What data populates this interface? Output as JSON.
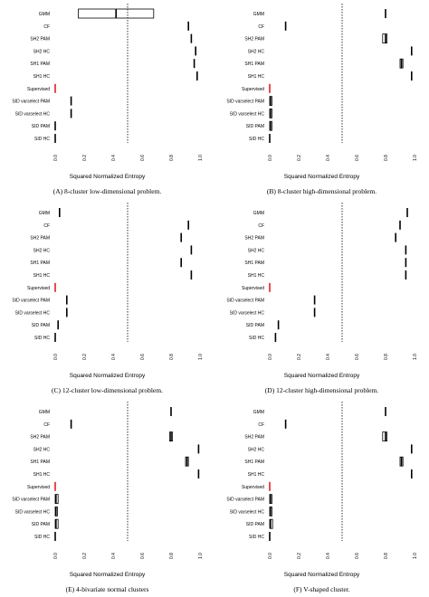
{
  "figure": {
    "colors": {
      "mark": "#000000",
      "supervised": "#e02020",
      "guide": "#000000"
    },
    "chart_data": [
      {
        "type": "box",
        "caption": "(A)  8-cluster low-dimensional problem.",
        "xlabel": "Squared Normalized Entropy",
        "xlim": [
          0,
          1
        ],
        "xticks": [
          "0.0",
          "0.2",
          "0.4",
          "0.6",
          "0.8",
          "1.0"
        ],
        "reference_line": 0.5,
        "categories": [
          "GMM",
          "CF",
          "SH2 PAM",
          "SH2 HC",
          "SH1 PAM",
          "SH1 HC",
          "Supervised",
          "SID varselect PAM",
          "SID varselect HC",
          "SID PAM",
          "SID HC"
        ],
        "boxes": [
          {
            "q1": 0.16,
            "median": 0.42,
            "q3": 0.68
          },
          {
            "median": 0.92
          },
          {
            "median": 0.94
          },
          {
            "median": 0.97
          },
          {
            "median": 0.96
          },
          {
            "median": 0.98
          },
          {
            "median": 0.0
          },
          {
            "median": 0.11
          },
          {
            "median": 0.11
          },
          {
            "median": 0.0
          },
          {
            "median": 0.0
          }
        ]
      },
      {
        "type": "box",
        "caption": "(B)  8-cluster high-dimensional problem.",
        "xlabel": "Squared Normalized Entropy",
        "xlim": [
          0,
          1
        ],
        "xticks": [
          "0.0",
          "0.2",
          "0.4",
          "0.6",
          "0.8",
          "1.0"
        ],
        "reference_line": 0.5,
        "categories": [
          "GMM",
          "CF",
          "SH2 PAM",
          "SH2 HC",
          "SH1 PAM",
          "SH1 HC",
          "Supervised",
          "SID varselect PAM",
          "SID varselect HC",
          "SID PAM",
          "SID HC"
        ],
        "boxes": [
          {
            "median": 0.8
          },
          {
            "median": 0.11
          },
          {
            "q1": 0.78,
            "median": 0.8,
            "q3": 0.81
          },
          {
            "median": 0.98
          },
          {
            "q1": 0.9,
            "median": 0.91,
            "q3": 0.92
          },
          {
            "median": 0.98
          },
          {
            "median": 0.0
          },
          {
            "q1": 0.0,
            "median": 0.005,
            "q3": 0.015
          },
          {
            "q1": 0.0,
            "median": 0.005,
            "q3": 0.015
          },
          {
            "q1": 0.0,
            "median": 0.005,
            "q3": 0.015
          },
          {
            "median": 0.0
          }
        ]
      },
      {
        "type": "box",
        "caption": "(C)  12-cluster low-dimensional problem.",
        "xlabel": "Squared Normalized Entropy",
        "xlim": [
          0,
          1
        ],
        "xticks": [
          "0.0",
          "0.2",
          "0.4",
          "0.6",
          "0.8",
          "1.0"
        ],
        "reference_line": 0.5,
        "categories": [
          "GMM",
          "CF",
          "SH2 PAM",
          "SH2 HC",
          "SH1 PAM",
          "SH1 HC",
          "Supervised",
          "SID varselect PAM",
          "SID varselect HC",
          "SID PAM",
          "SID HC"
        ],
        "boxes": [
          {
            "median": 0.03
          },
          {
            "median": 0.92
          },
          {
            "median": 0.87
          },
          {
            "median": 0.94
          },
          {
            "median": 0.87
          },
          {
            "median": 0.94
          },
          {
            "median": 0.0
          },
          {
            "median": 0.08
          },
          {
            "median": 0.08
          },
          {
            "median": 0.02
          },
          {
            "median": 0.0
          }
        ]
      },
      {
        "type": "box",
        "caption": "(D)  12-cluster high-dimensional problem.",
        "xlabel": "Squared Normalized Entropy",
        "xlim": [
          0,
          1
        ],
        "xticks": [
          "0.0",
          "0.2",
          "0.4",
          "0.6",
          "0.8",
          "1.0"
        ],
        "reference_line": 0.5,
        "categories": [
          "GMM",
          "CF",
          "SH2 PAM",
          "SH2 HC",
          "SH1 PAM",
          "SH1 HC",
          "Supervised",
          "SID varselect PAM",
          "SID varselect HC",
          "SID PAM",
          "SID HC"
        ],
        "boxes": [
          {
            "median": 0.95
          },
          {
            "median": 0.9
          },
          {
            "median": 0.87
          },
          {
            "median": 0.94
          },
          {
            "median": 0.94
          },
          {
            "median": 0.94
          },
          {
            "median": 0.0
          },
          {
            "median": 0.31
          },
          {
            "median": 0.31
          },
          {
            "median": 0.06
          },
          {
            "median": 0.04
          }
        ]
      },
      {
        "type": "box",
        "caption": "(E)  4-bivariate normal clusters",
        "xlabel": "Squared Normalized Entropy",
        "xlim": [
          0,
          1
        ],
        "xticks": [
          "0.0",
          "0.2",
          "0.4",
          "0.6",
          "0.8",
          "1.0"
        ],
        "reference_line": 0.5,
        "categories": [
          "GMM",
          "CF",
          "SH2 PAM",
          "SH2 HC",
          "SH1 PAM",
          "SH1 HC",
          "Supervised",
          "SID varselect PAM",
          "SID varselect HC",
          "SID PAM",
          "SID HC"
        ],
        "boxes": [
          {
            "median": 0.8
          },
          {
            "median": 0.11
          },
          {
            "q1": 0.79,
            "median": 0.8,
            "q3": 0.81
          },
          {
            "median": 0.99
          },
          {
            "q1": 0.9,
            "median": 0.91,
            "q3": 0.92
          },
          {
            "median": 0.99
          },
          {
            "median": 0.0
          },
          {
            "q1": 0.0,
            "median": 0.005,
            "q3": 0.02
          },
          {
            "q1": 0.0,
            "median": 0.005,
            "q3": 0.015
          },
          {
            "q1": 0.0,
            "median": 0.005,
            "q3": 0.02
          },
          {
            "median": 0.0
          }
        ]
      },
      {
        "type": "box",
        "caption": "(F)  V-shaped cluster.",
        "xlabel": "Squared Normalized Entropy",
        "xlim": [
          0,
          1
        ],
        "xticks": [
          "0.0",
          "0.2",
          "0.4",
          "0.6",
          "0.8",
          "1.0"
        ],
        "reference_line": 0.5,
        "categories": [
          "GMM",
          "CF",
          "SH2 PAM",
          "SH2 HC",
          "SH1 PAM",
          "SH1 HC",
          "Supervised",
          "SID varselect PAM",
          "SID varselect HC",
          "SID PAM",
          "SID HC"
        ],
        "boxes": [
          {
            "median": 0.8
          },
          {
            "median": 0.11
          },
          {
            "q1": 0.78,
            "median": 0.8,
            "q3": 0.81
          },
          {
            "median": 0.98
          },
          {
            "q1": 0.9,
            "median": 0.91,
            "q3": 0.92
          },
          {
            "median": 0.98
          },
          {
            "median": 0.0
          },
          {
            "q1": 0.0,
            "median": 0.005,
            "q3": 0.015
          },
          {
            "q1": 0.0,
            "median": 0.005,
            "q3": 0.015
          },
          {
            "q1": 0.0,
            "median": 0.005,
            "q3": 0.02
          },
          {
            "median": 0.0
          }
        ]
      }
    ]
  }
}
